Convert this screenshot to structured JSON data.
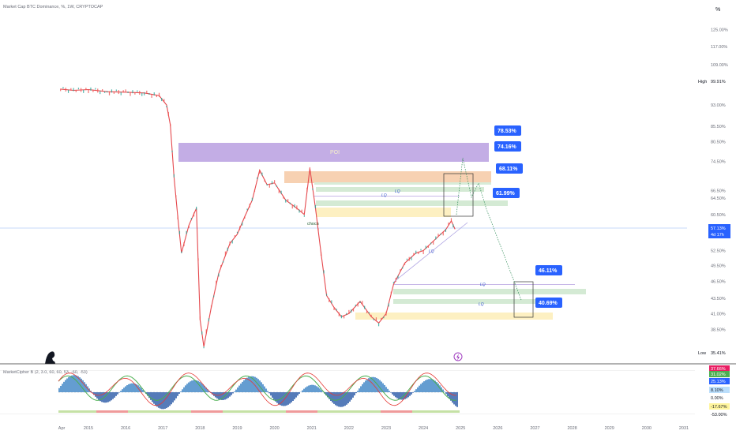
{
  "header": {
    "title": "Market Cap BTC Dominance, %, 1W, CRYPTOCAP",
    "percent_button": "%"
  },
  "colors": {
    "up": "#26a69a",
    "down": "#ef5350",
    "price_line": "#e5484d",
    "poi": "#9b7fd1",
    "orange_zone": "#f6c9a4",
    "green_zone": "#cfe8cf",
    "yellow_zone": "#fdf0c2",
    "label_blue": "#2962ff",
    "current_line": "#90b4f5"
  },
  "chart_data": [
    {
      "type": "line",
      "title": "Market Cap BTC Dominance, %, 1W, CRYPTOCAP",
      "y_scale": "log",
      "ylim": [
        34.5,
        128
      ],
      "y_ticks": [
        "125.00%",
        "117.00%",
        "109.00%",
        "93.00%",
        "85.50%",
        "80.50%",
        "74.50%",
        "66.50%",
        "64.50%",
        "60.50%",
        "52.50%",
        "49.50%",
        "46.50%",
        "43.50%",
        "41.00%",
        "38.50%"
      ],
      "x_ticks": [
        "Apr",
        "2015",
        "2016",
        "2017",
        "2018",
        "2019",
        "2020",
        "2021",
        "2022",
        "2023",
        "2024",
        "2025",
        "2026",
        "2027",
        "2028",
        "2029",
        "2030",
        "2031"
      ],
      "x": [
        2014.25,
        2014.6,
        2015.0,
        2015.5,
        2016.0,
        2016.5,
        2016.9,
        2017.1,
        2017.2,
        2017.3,
        2017.4,
        2017.5,
        2017.7,
        2017.9,
        2018.0,
        2018.1,
        2018.3,
        2018.5,
        2018.8,
        2019.0,
        2019.2,
        2019.4,
        2019.6,
        2019.8,
        2020.0,
        2020.3,
        2020.6,
        2020.8,
        2020.95,
        2021.1,
        2021.25,
        2021.4,
        2021.6,
        2021.8,
        2022.0,
        2022.3,
        2022.6,
        2022.8,
        2023.0,
        2023.2,
        2023.5,
        2023.8,
        2024.0,
        2024.2,
        2024.4,
        2024.6,
        2024.75,
        2024.85
      ],
      "values": [
        99.0,
        98.5,
        98.8,
        98.0,
        97.8,
        97.5,
        96.5,
        93.0,
        86.0,
        70.0,
        60.0,
        52.0,
        58.0,
        62.0,
        40.0,
        36.0,
        42.0,
        48.0,
        54.0,
        56.0,
        60.0,
        64.0,
        72.0,
        68.0,
        68.5,
        64.0,
        62.0,
        60.5,
        72.5,
        62.0,
        52.0,
        44.0,
        42.0,
        40.5,
        41.0,
        43.0,
        40.5,
        39.5,
        41.0,
        46.0,
        50.0,
        52.0,
        52.5,
        54.0,
        55.5,
        57.0,
        59.0,
        57.1
      ],
      "annotations": {
        "poi_label": "POI",
        "choch_label": "choch",
        "lq_labels": [
          "LQ",
          "LQ",
          "LQ",
          "LQ"
        ],
        "target_labels": [
          "78.53%",
          "74.16%",
          "68.11%",
          "61.99%",
          "46.11%",
          "40.69%"
        ],
        "current_value": "57.13%",
        "current_countdown": "4d 17h",
        "high_label": "High",
        "high_value": "99.91%",
        "low_label": "Low",
        "low_value": "35.41%"
      }
    },
    {
      "type": "area",
      "title": "MarketCipher B (2, 3.0, 60, 60, 53, -60, -53)",
      "ylim": [
        -60,
        60
      ],
      "y_ticks": [
        "25.13%",
        "8.10%",
        "0.00%",
        "-17.67%",
        "-53.00%"
      ],
      "value_badges": [
        "37.66%",
        "31.02%",
        "25.13%",
        "8.10%",
        "0.00%",
        "-17.67%",
        "-53.00%"
      ]
    }
  ]
}
